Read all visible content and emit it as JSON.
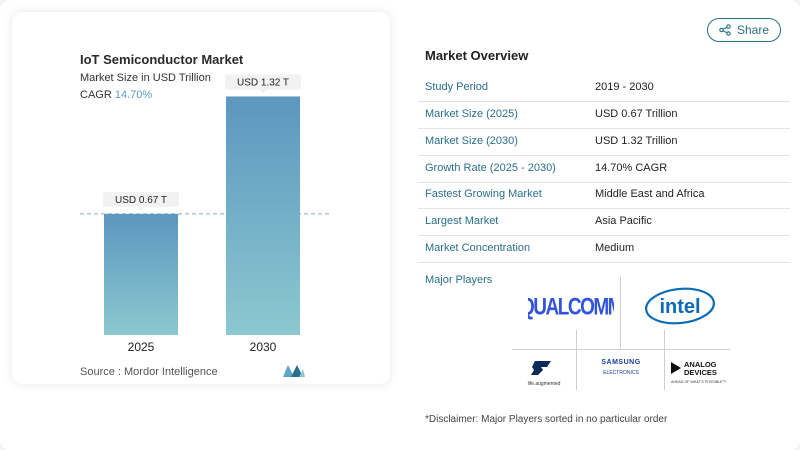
{
  "chart": {
    "title": "IoT Semiconductor Market",
    "subtitle": "Market Size in USD Trillion",
    "cagr_label": "CAGR",
    "cagr_value": "14.70%",
    "source": "Source : Mordor Intelligence"
  },
  "chart_data": {
    "type": "bar",
    "categories": [
      "2025",
      "2030"
    ],
    "values": [
      0.67,
      1.32
    ],
    "data_labels": [
      "USD 0.67 T",
      "USD 1.32 T"
    ],
    "title": "IoT Semiconductor Market",
    "ylabel": "Market Size in USD Trillion",
    "ylim": [
      0,
      1.4
    ],
    "grid": false,
    "colors": [
      "#6aa1c4",
      "#8cc8cf"
    ]
  },
  "share": {
    "label": "Share"
  },
  "overview": {
    "title": "Market Overview",
    "rows": [
      {
        "label": "Study Period",
        "value": "2019 - 2030"
      },
      {
        "label": "Market Size (2025)",
        "value": "USD 0.67 Trillion"
      },
      {
        "label": "Market Size (2030)",
        "value": "USD 1.32 Trillion"
      },
      {
        "label": "Growth Rate (2025 - 2030)",
        "value": "14.70% CAGR"
      },
      {
        "label": "Fastest Growing Market",
        "value": "Middle East and Africa"
      },
      {
        "label": "Largest Market",
        "value": "Asia Pacific"
      },
      {
        "label": "Market Concentration",
        "value": "Medium"
      }
    ],
    "players_label": "Major Players",
    "players": [
      "Qualcomm",
      "Intel",
      "STMicroelectronics",
      "Samsung Electronics",
      "Analog Devices"
    ],
    "disclaimer": "*Disclaimer: Major Players sorted in no particular order"
  },
  "colors": {
    "accent": "#2a6f8a",
    "bar_top": "#5b97bf",
    "bar_bottom": "#8cc8cf"
  }
}
